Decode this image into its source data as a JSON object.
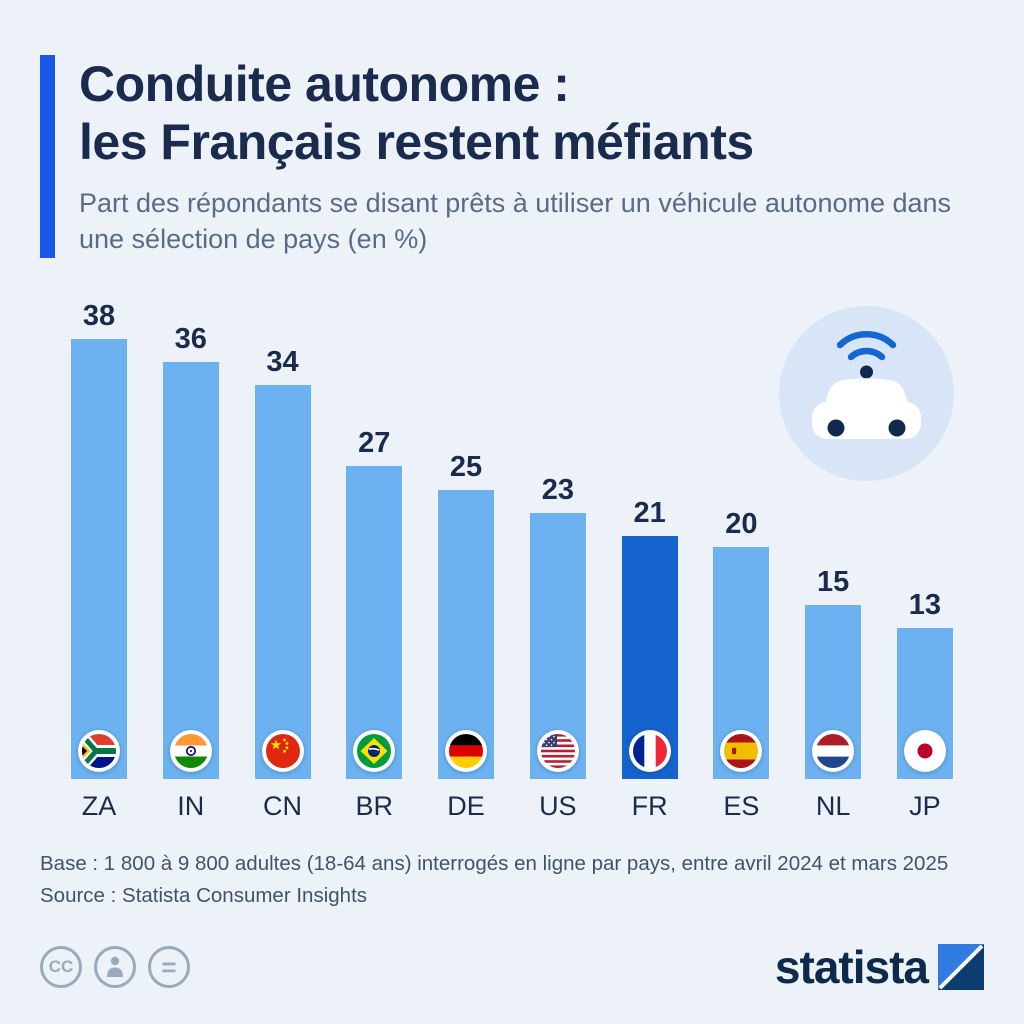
{
  "header": {
    "title_line1": "Conduite autonome :",
    "title_line2": "les Français restent méfiants",
    "subtitle": "Part des répondants se disant prêts à utiliser un véhicule autonome dans une sélection de pays (en %)"
  },
  "chart_data": {
    "type": "bar",
    "categories": [
      "ZA",
      "IN",
      "CN",
      "BR",
      "DE",
      "US",
      "FR",
      "ES",
      "NL",
      "JP"
    ],
    "values": [
      38,
      36,
      34,
      27,
      25,
      23,
      21,
      20,
      15,
      13
    ],
    "unit": "%",
    "highlight_category": "FR",
    "title": "Part des répondants se disant prêts à utiliser un véhicule autonome dans une sélection de pays (en %)",
    "xlabel": "",
    "ylabel": "",
    "ylim": [
      0,
      38
    ],
    "grid": false,
    "legend": "none",
    "value_labels": true,
    "bar_color": "#6CB2F0",
    "highlight_color": "#1563CE",
    "flags": [
      "south-africa-flag-icon",
      "india-flag-icon",
      "china-flag-icon",
      "brazil-flag-icon",
      "germany-flag-icon",
      "usa-flag-icon",
      "france-flag-icon",
      "spain-flag-icon",
      "netherlands-flag-icon",
      "japan-flag-icon"
    ]
  },
  "footer": {
    "base_note": "Base : 1 800 à 9 800 adultes (18-64 ans) interrogés en ligne par pays, entre avril 2024 et mars 2025",
    "source": "Source : Statista Consumer Insights"
  },
  "branding": {
    "logo_text": "statista",
    "cc_label": "CC",
    "nd_label": "="
  },
  "icons": [
    "autonomous-car-wifi-icon",
    "cc-icon",
    "attribution-person-icon",
    "no-derivatives-icon",
    "statista-logo-mark"
  ],
  "colors": {
    "background": "#EDF2F8",
    "accent_bar": "#1A56E8",
    "title": "#1B2B4D",
    "subtitle": "#5B6B86",
    "bar": "#6CB2F0",
    "highlight": "#1563CE",
    "footer_text": "#42526B"
  }
}
